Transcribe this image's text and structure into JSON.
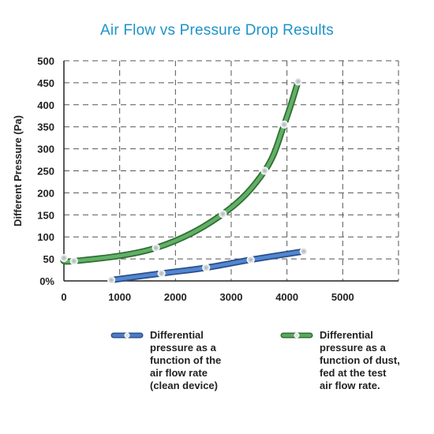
{
  "chart_data": {
    "type": "line",
    "title": "Air Flow vs Pressure Drop Results",
    "xlabel": "",
    "ylabel": "Different Pressure (Pa)",
    "xlim": [
      0,
      6000
    ],
    "ylim": [
      0,
      500
    ],
    "x_ticks": [
      "0",
      "1000",
      "2000",
      "3000",
      "4000",
      "5000"
    ],
    "x_tick_values": [
      0,
      1000,
      2000,
      3000,
      4000,
      5000
    ],
    "y_ticks": [
      "0%",
      "50",
      "100",
      "150",
      "200",
      "250",
      "300",
      "350",
      "400",
      "450",
      "500"
    ],
    "y_tick_values": [
      0,
      50,
      100,
      150,
      200,
      250,
      300,
      350,
      400,
      450,
      500
    ],
    "grid": true,
    "legend_position": "bottom",
    "series": [
      {
        "name": "Differential pressure as a function of the air flow rate (clean device)",
        "color": "#3f6db4",
        "points": [
          [
            850,
            2
          ],
          [
            1750,
            17
          ],
          [
            2550,
            30
          ],
          [
            3350,
            48
          ],
          [
            4300,
            67
          ]
        ]
      },
      {
        "name": "Differential pressure as a function of dust, fed at the test air flow rate.",
        "color": "#4c9a50",
        "points": [
          [
            0,
            52
          ],
          [
            180,
            45
          ],
          [
            1650,
            75
          ],
          [
            2850,
            152
          ],
          [
            3600,
            250
          ],
          [
            3950,
            355
          ],
          [
            4200,
            453
          ]
        ]
      }
    ]
  },
  "legend": {
    "items": [
      {
        "label": "Differential\npressure as a\nfunction of the\nair flow rate\n(clean device)"
      },
      {
        "label": "Differential\npressure as a\nfunction of dust,\nfed at the test\nair flow rate."
      }
    ]
  }
}
